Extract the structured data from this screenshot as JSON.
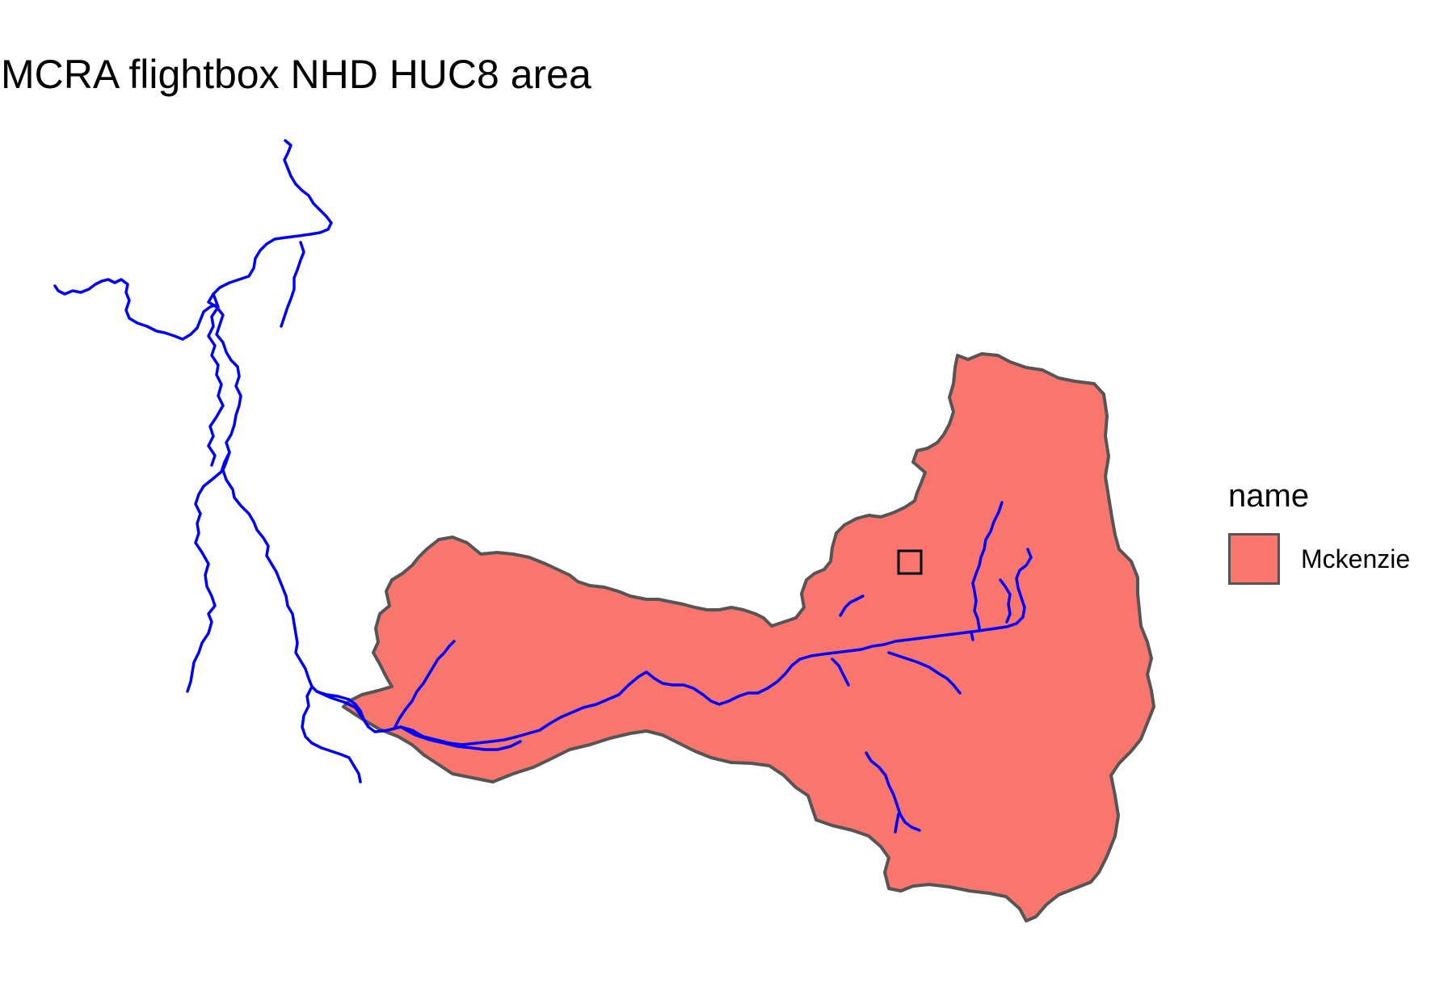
{
  "map": {
    "title": "MCRA flightbox NHD HUC8 area"
  },
  "legend": {
    "title": "name",
    "items": [
      {
        "label": "Mckenzie",
        "fill": "#f8766d"
      }
    ]
  },
  "colors": {
    "huc8_fill": "#f8766d",
    "huc8_border": "#555555",
    "flowlines": "#0000ff",
    "flightbox_border": "#000000",
    "background": "#ffffff"
  }
}
